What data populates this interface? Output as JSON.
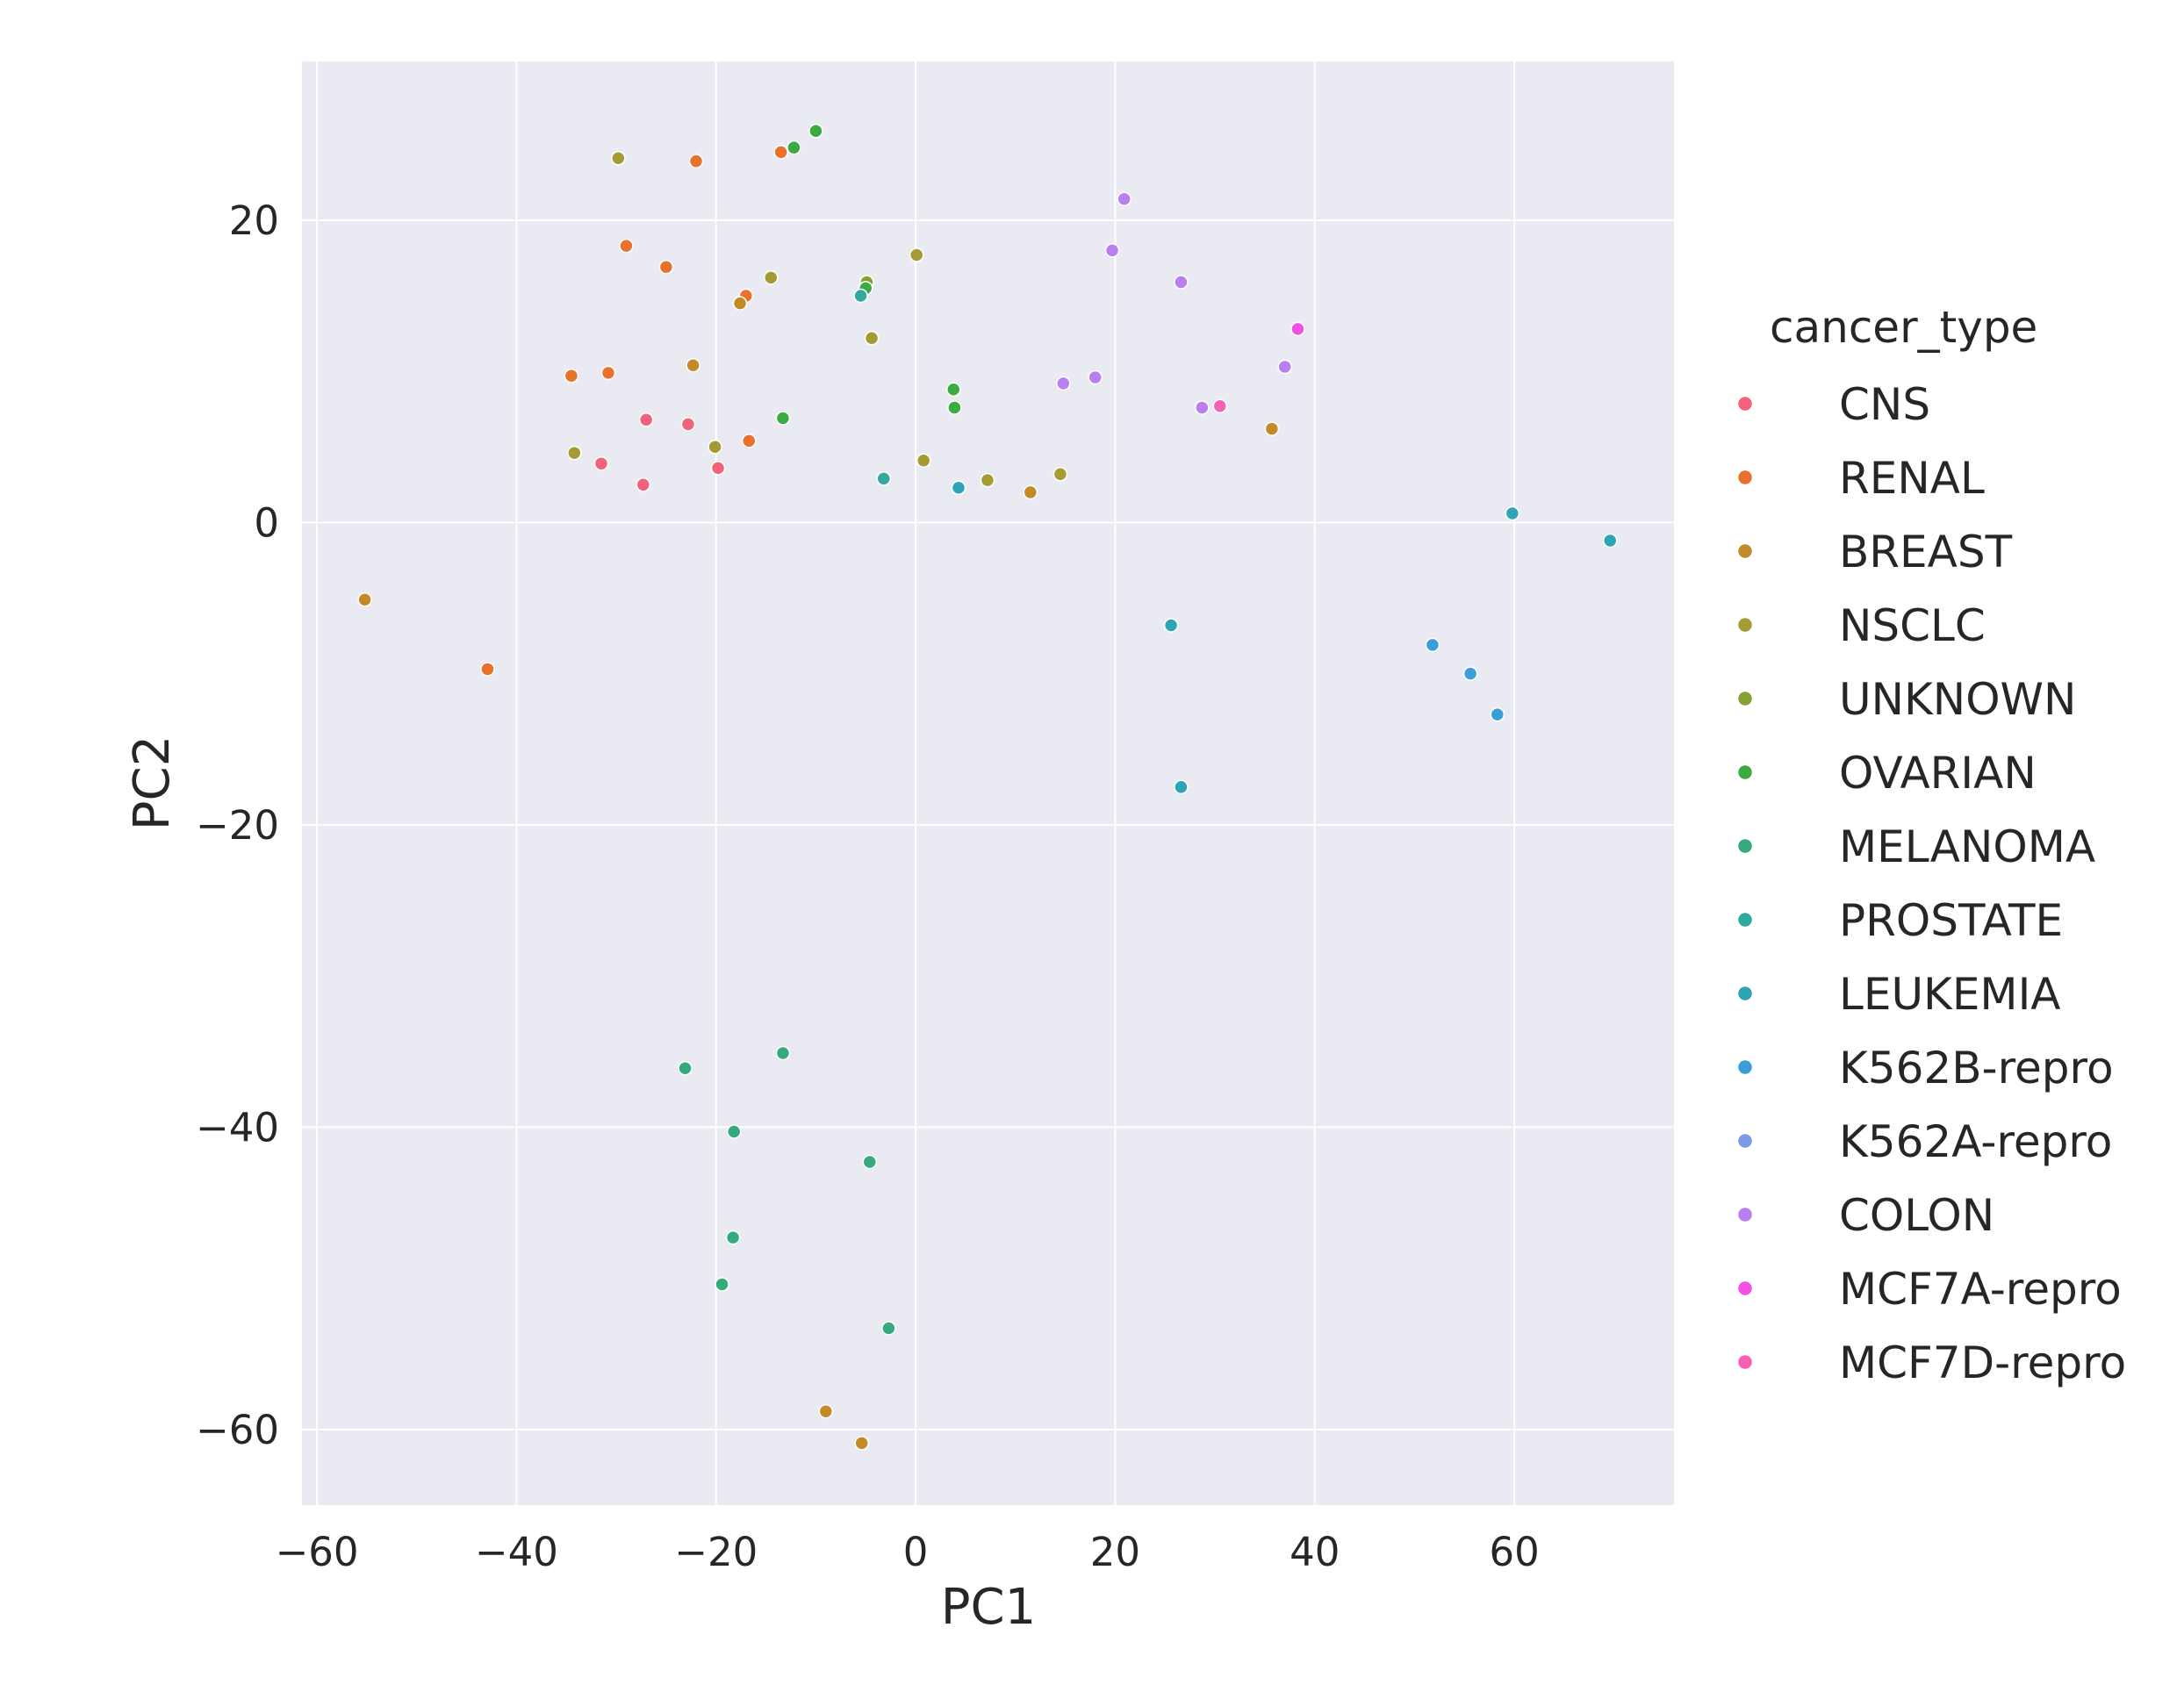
{
  "chart_data": {
    "type": "scatter",
    "title": "",
    "xlabel": "PC1",
    "ylabel": "PC2",
    "xlim": [
      -61.5,
      76.0
    ],
    "ylim": [
      -65.0,
      30.5
    ],
    "xticks": [
      -60,
      -40,
      -20,
      0,
      20,
      40,
      60
    ],
    "yticks": [
      -60,
      -40,
      -20,
      0,
      20
    ],
    "xtick_labels": [
      "−60",
      "−40",
      "−20",
      "0",
      "20",
      "40",
      "60"
    ],
    "ytick_labels": [
      "−60",
      "−40",
      "−20",
      "0",
      "20"
    ],
    "grid": true,
    "background": "#eaeaf2",
    "legend": {
      "title": "cancer_type",
      "placement": "right-outside"
    },
    "series": [
      {
        "name": "CNS",
        "color": "#f0637a",
        "points": [
          [
            -27.0,
            6.8
          ],
          [
            -22.8,
            6.5
          ],
          [
            -31.5,
            3.9
          ],
          [
            -27.3,
            2.5
          ],
          [
            -19.8,
            3.6
          ]
        ]
      },
      {
        "name": "RENAL",
        "color": "#e8712b",
        "points": [
          [
            -22.0,
            23.9
          ],
          [
            -13.5,
            24.5
          ],
          [
            -29.0,
            18.3
          ],
          [
            -25.0,
            16.9
          ],
          [
            -17.0,
            15.0
          ],
          [
            -34.5,
            9.7
          ],
          [
            -30.8,
            9.9
          ],
          [
            -16.7,
            5.4
          ],
          [
            -42.9,
            -9.7
          ]
        ]
      },
      {
        "name": "BREAST",
        "color": "#c48a2a",
        "points": [
          [
            -55.2,
            -5.1
          ],
          [
            -17.6,
            14.5
          ],
          [
            -22.3,
            10.4
          ],
          [
            35.7,
            6.2
          ],
          [
            11.5,
            2.0
          ],
          [
            -9.0,
            -58.8
          ],
          [
            -5.4,
            -60.9
          ]
        ]
      },
      {
        "name": "NSCLC",
        "color": "#a59b33",
        "points": [
          [
            -29.8,
            24.1
          ],
          [
            -14.5,
            16.2
          ],
          [
            0.1,
            17.7
          ],
          [
            -4.4,
            12.2
          ],
          [
            -34.2,
            4.6
          ],
          [
            -20.1,
            5.0
          ],
          [
            0.8,
            4.1
          ],
          [
            7.2,
            2.8
          ],
          [
            14.5,
            3.2
          ]
        ]
      },
      {
        "name": "UNKNOWN",
        "color": "#85a132",
        "points": [
          [
            -4.9,
            15.9
          ]
        ]
      },
      {
        "name": "OVARIAN",
        "color": "#3aab40",
        "points": [
          [
            -10.0,
            25.9
          ],
          [
            -12.2,
            24.8
          ],
          [
            -5.0,
            15.5
          ],
          [
            3.8,
            8.8
          ],
          [
            3.9,
            7.6
          ],
          [
            -13.3,
            6.9
          ]
        ]
      },
      {
        "name": "MELANOMA",
        "color": "#35ab7c",
        "points": [
          [
            -13.3,
            -35.1
          ],
          [
            -23.1,
            -36.1
          ],
          [
            -18.2,
            -40.3
          ],
          [
            -4.6,
            -42.3
          ],
          [
            -18.3,
            -47.3
          ],
          [
            -19.4,
            -50.4
          ],
          [
            -2.7,
            -53.3
          ]
        ]
      },
      {
        "name": "PROSTATE",
        "color": "#30aa9c",
        "points": [
          [
            -5.5,
            15.0
          ],
          [
            -3.2,
            2.9
          ]
        ]
      },
      {
        "name": "LEUKEMIA",
        "color": "#2ea4b7",
        "points": [
          [
            4.3,
            2.3
          ],
          [
            25.6,
            -6.8
          ],
          [
            26.6,
            -17.5
          ],
          [
            59.8,
            0.6
          ],
          [
            69.6,
            -1.2
          ]
        ]
      },
      {
        "name": "K562B-repro",
        "color": "#3b9ed8",
        "points": [
          [
            51.8,
            -8.1
          ],
          [
            55.6,
            -10.0
          ],
          [
            58.3,
            -12.7
          ]
        ]
      },
      {
        "name": "K562A-repro",
        "color": "#7b9ae8",
        "points": []
      },
      {
        "name": "COLON",
        "color": "#b97ef0",
        "points": [
          [
            20.9,
            21.4
          ],
          [
            19.7,
            18.0
          ],
          [
            26.6,
            15.9
          ],
          [
            14.8,
            9.2
          ],
          [
            18.0,
            9.6
          ],
          [
            37.0,
            10.3
          ],
          [
            28.7,
            7.6
          ]
        ]
      },
      {
        "name": "MCF7A-repro",
        "color": "#f050e6",
        "points": [
          [
            38.3,
            12.8
          ]
        ]
      },
      {
        "name": "MCF7D-repro",
        "color": "#f561b6",
        "points": [
          [
            30.5,
            7.7
          ]
        ]
      }
    ]
  }
}
